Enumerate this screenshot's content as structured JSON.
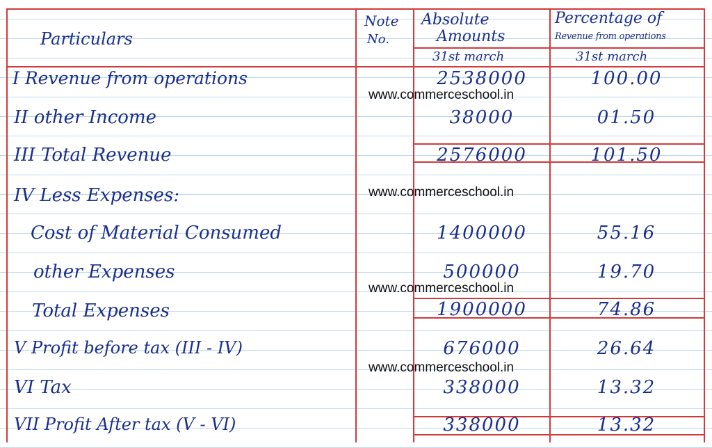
{
  "header": {
    "particulars": "Particulars",
    "note_line1": "Note",
    "note_line2": "No.",
    "abs_line1": "Absolute",
    "abs_line2": "Amounts",
    "abs_sub": "31st march",
    "pct_line1": "Percentage of",
    "pct_line2": "Revenue from operations",
    "pct_sub": "31st march"
  },
  "rows": [
    {
      "particular": "I Revenue from operations",
      "amount": "2538000",
      "percent": "100.00"
    },
    {
      "particular": "II other Income",
      "amount": "38000",
      "percent": "01.50"
    },
    {
      "particular": "III Total Revenue",
      "amount": "2576000",
      "percent": "101.50"
    },
    {
      "particular": "IV Less Expenses:",
      "amount": "",
      "percent": ""
    },
    {
      "particular": "Cost of Material Consumed",
      "amount": "1400000",
      "percent": "55.16"
    },
    {
      "particular": "other Expenses",
      "amount": "500000",
      "percent": "19.70"
    },
    {
      "particular": "Total Expenses",
      "amount": "1900000",
      "percent": "74.86"
    },
    {
      "particular": "V Profit before tax (III - IV)",
      "amount": "676000",
      "percent": "26.64"
    },
    {
      "particular": "VI Tax",
      "amount": "338000",
      "percent": "13.32"
    },
    {
      "particular": "VII Profit After tax (V - VI)",
      "amount": "338000",
      "percent": "13.32"
    }
  ],
  "watermark": [
    "www.commerceschool.in",
    "www.commerceschool.in",
    "www.commerceschool.in",
    "www.commerceschool.in"
  ],
  "colors": {
    "grid": "#d23a3a",
    "ink": "#1a2f8c",
    "ruling": "#bcd9ee"
  }
}
